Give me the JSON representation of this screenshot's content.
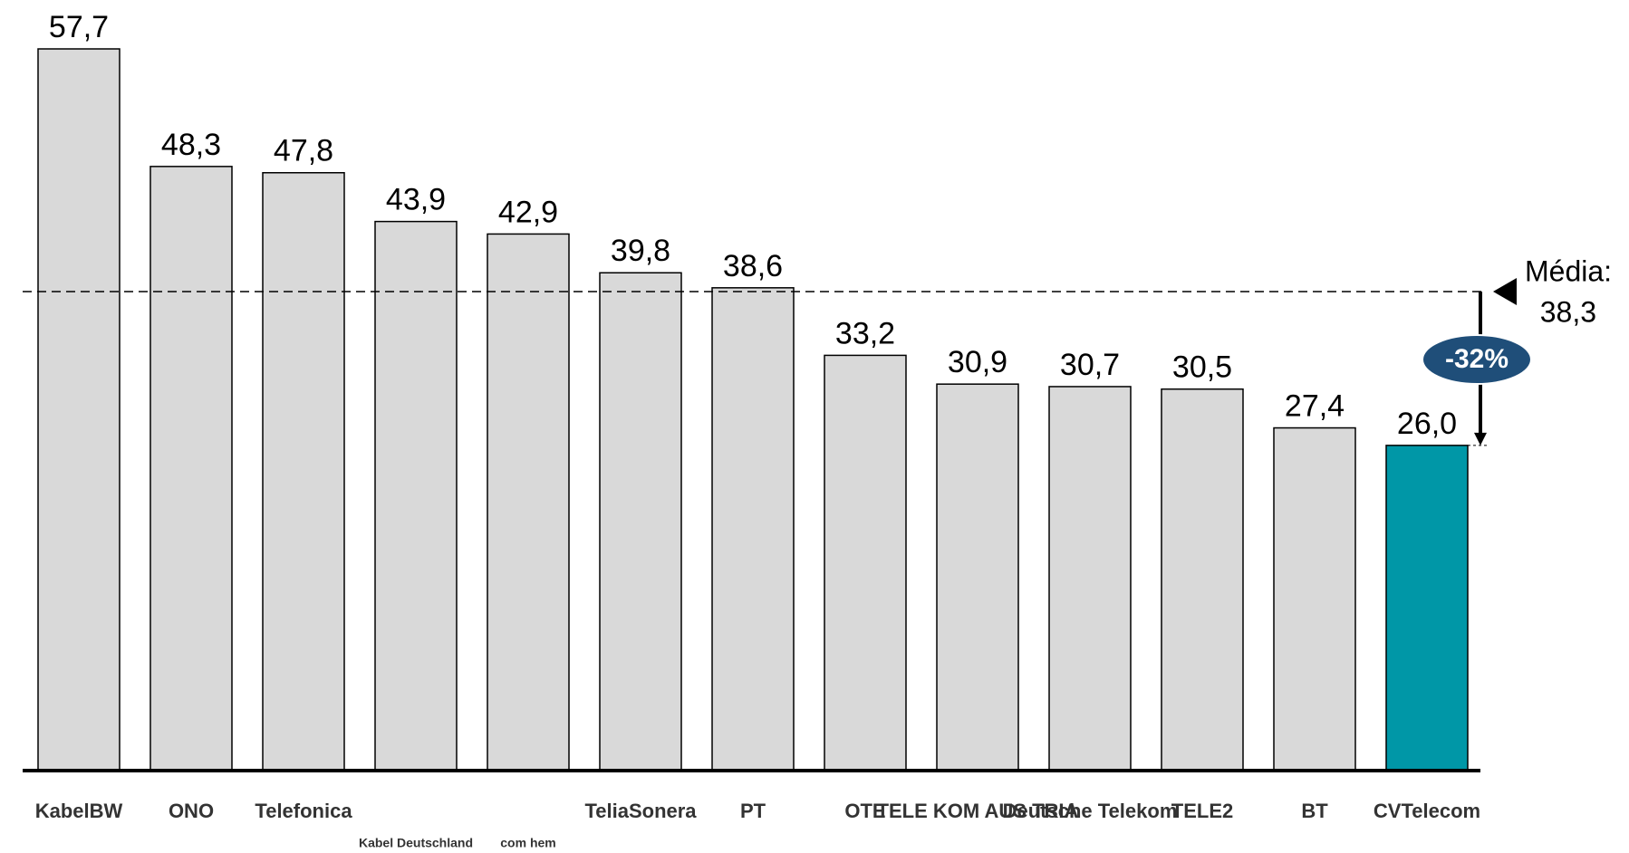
{
  "chart_data": {
    "type": "bar",
    "categories": [
      "KabelBW",
      "ONO",
      "Telefonica",
      "Kabel Deutschland",
      "com hem",
      "TeliaSonera",
      "PT",
      "OTE",
      "TELE KOM AUS TRIA",
      "Deutsche Telekom",
      "TELE2",
      "BT",
      "CVTelecom"
    ],
    "values": [
      57.7,
      48.3,
      47.8,
      43.9,
      42.9,
      39.8,
      38.6,
      33.2,
      30.9,
      30.7,
      30.5,
      27.4,
      26.0
    ],
    "value_labels": [
      "57,7",
      "48,3",
      "47,8",
      "43,9",
      "42,9",
      "39,8",
      "38,6",
      "33,2",
      "30,9",
      "30,7",
      "30,5",
      "27,4",
      "26,0"
    ],
    "colors": [
      "#d9d9d9",
      "#d9d9d9",
      "#d9d9d9",
      "#d9d9d9",
      "#d9d9d9",
      "#d9d9d9",
      "#d9d9d9",
      "#d9d9d9",
      "#d9d9d9",
      "#d9d9d9",
      "#d9d9d9",
      "#d9d9d9",
      "#0097a7"
    ],
    "mean": {
      "label": "Média:",
      "value": 38.3,
      "value_label": "38,3"
    },
    "annotation": "-32%"
  }
}
